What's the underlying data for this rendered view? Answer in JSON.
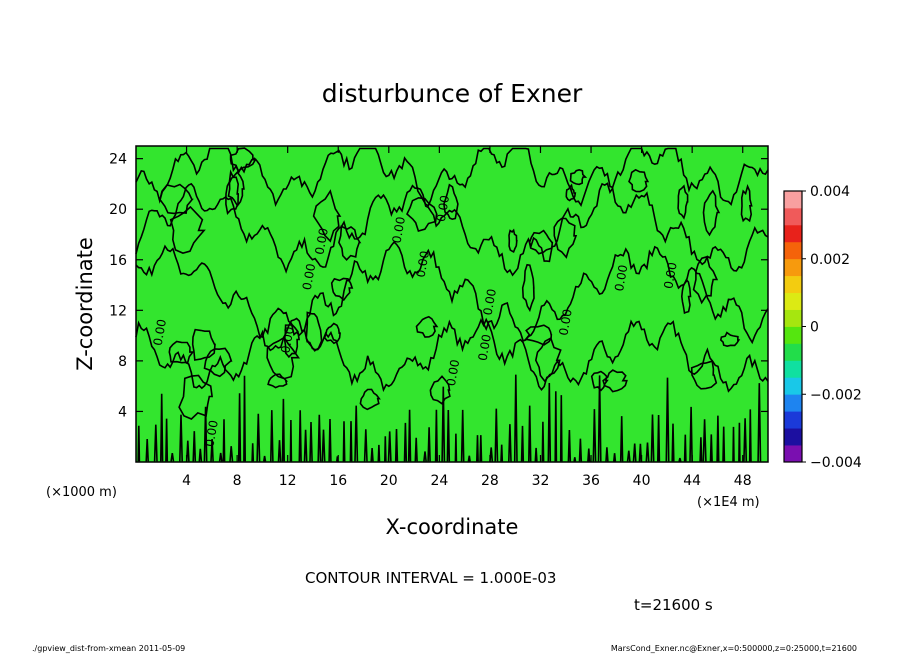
{
  "chart_data": {
    "type": "heatmap",
    "title": "disturbunce of Exner",
    "xlabel": "X-coordinate",
    "ylabel": "Z-coordinate",
    "x_unit_left": "(×1000 m)",
    "x_unit_right": "(×1E4 m)",
    "xlim": [
      0,
      50
    ],
    "ylim": [
      0,
      25
    ],
    "x_ticks": [
      "4",
      "8",
      "12",
      "16",
      "20",
      "24",
      "28",
      "32",
      "36",
      "40",
      "44",
      "48"
    ],
    "y_ticks": [
      "4",
      "8",
      "12",
      "16",
      "20",
      "24"
    ],
    "colorbar": {
      "range": [
        -0.004,
        0.004
      ],
      "tick_labels": [
        "0.004",
        "0.002",
        "0",
        "−0.002",
        "−0.004"
      ],
      "colors": [
        "#7a0fb0",
        "#1c0fa0",
        "#1b3ad9",
        "#1e84f0",
        "#19c8e8",
        "#10e0a0",
        "#22dd4a",
        "#55e60f",
        "#a6e60f",
        "#dcea14",
        "#f3cc10",
        "#f79a0d",
        "#f5630a",
        "#e8221b",
        "#f05a5a",
        "#f8a0a0"
      ]
    },
    "field_fill": "#33e52e",
    "contour_labels": [
      "0.00",
      "0.00",
      "0.00",
      "0.00",
      "0.00",
      "0.00",
      "0.00",
      "0.00",
      "0.00",
      "0.00",
      "0.00",
      "0.00",
      "0.00",
      "0.00"
    ],
    "contour_interval": "CONTOUR INTERVAL = 1.000E-03",
    "time_label": "t=21600 s"
  },
  "footer": {
    "left": "./gpview_dist-from-xmean 2011-05-09",
    "right": "MarsCond_Exner.nc@Exner,x=0:500000,z=0:25000,t=21600"
  }
}
